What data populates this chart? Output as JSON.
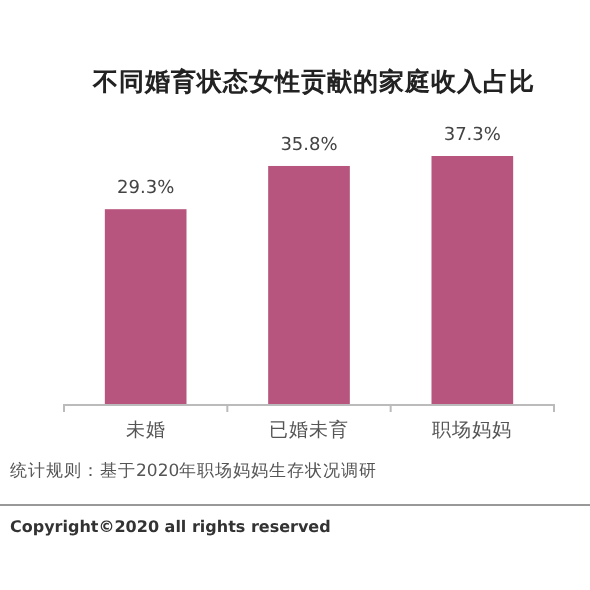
{
  "chart_data": {
    "type": "bar",
    "title": "不同婚育状态女性贡献的家庭收入占比",
    "categories": [
      "未婚",
      "已婚未育",
      "职场妈妈"
    ],
    "values": [
      29.3,
      35.8,
      37.3
    ],
    "color": "#b8557e",
    "value_labels": [
      "29.3%",
      "35.8%",
      "37.3%"
    ],
    "annotations": [
      "统计规则：基于2020年职场妈妈生存状况调研",
      "Copyright©2020 all rights reserved"
    ]
  }
}
